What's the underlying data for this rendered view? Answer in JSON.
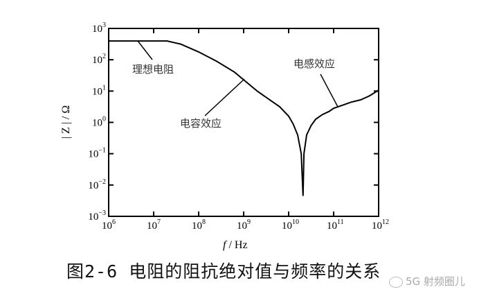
{
  "chart_data": {
    "type": "line",
    "title": "",
    "xlabel": "f / Hz",
    "ylabel": "|Z| / Ω",
    "xscale": "log",
    "yscale": "log",
    "xlim": [
      1000000.0,
      1000000000000.0
    ],
    "ylim": [
      0.001,
      1000.0
    ],
    "x_ticks": [
      "10^6",
      "10^7",
      "10^8",
      "10^9",
      "10^10",
      "10^11",
      "10^12"
    ],
    "y_ticks": [
      "10^-3",
      "10^-2",
      "10^-1",
      "10^0",
      "10^1",
      "10^2",
      "10^3"
    ],
    "grid": false,
    "series": [
      {
        "name": "|Z|",
        "x_log10": [
          6.0,
          6.5,
          7.0,
          7.3,
          7.6,
          8.0,
          8.4,
          8.8,
          9.0,
          9.3,
          9.6,
          9.8,
          10.0,
          10.1,
          10.2,
          10.28,
          10.32,
          10.34,
          10.4,
          10.5,
          10.6,
          10.75,
          10.9,
          11.0,
          11.2,
          11.4,
          11.6,
          11.8,
          12.0
        ],
        "y_log10": [
          2.6,
          2.6,
          2.6,
          2.6,
          2.5,
          2.25,
          1.95,
          1.6,
          1.36,
          1.0,
          0.7,
          0.5,
          0.2,
          -0.05,
          -0.4,
          -1.0,
          -2.35,
          -1.0,
          -0.4,
          -0.1,
          0.1,
          0.25,
          0.35,
          0.45,
          0.55,
          0.65,
          0.72,
          0.85,
          1.03
        ]
      }
    ],
    "annotations": [
      {
        "text": "理想电阻",
        "points_to_x_log10": 6.6,
        "points_to_y_log10": 2.6
      },
      {
        "text": "电容效应",
        "points_to_x_log10": 9.0,
        "points_to_y_log10": 1.36
      },
      {
        "text": "电感效应",
        "points_to_x_log10": 11.1,
        "points_to_y_log10": 0.45
      }
    ]
  },
  "labels": {
    "annot_ideal": "理想电阻",
    "annot_cap": "电容效应",
    "annot_ind": "电感效应",
    "xlabel_f": "f",
    "xlabel_unit": " / Hz",
    "ylabel": "| Z | / Ω"
  },
  "caption": "图2-6 电阻的阻抗绝对值与频率的关系",
  "watermark": "5G 射频圈儿"
}
